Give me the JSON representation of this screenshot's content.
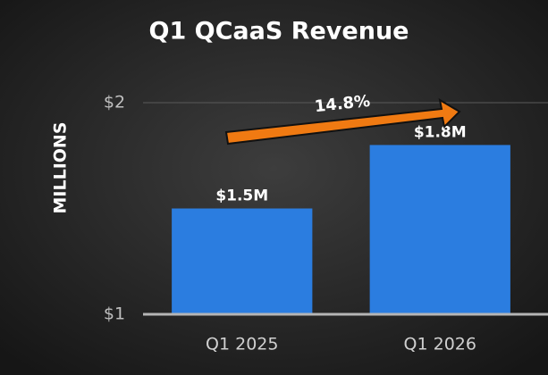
{
  "chart_data": {
    "type": "bar",
    "title": "Q1 QCaaS Revenue",
    "y_label": "MILLIONS",
    "categories": [
      "Q1 2025",
      "Q1 2026"
    ],
    "values": [
      1.5,
      1.8
    ],
    "value_labels": [
      "$1.5M",
      "$1.8M"
    ],
    "color": "#2b7de0",
    "ylim": [
      1,
      2
    ],
    "yticks": [
      {
        "value": 1,
        "label": "$1"
      },
      {
        "value": 2,
        "label": "$2"
      }
    ],
    "grid": true,
    "annotation": "14.8%"
  }
}
